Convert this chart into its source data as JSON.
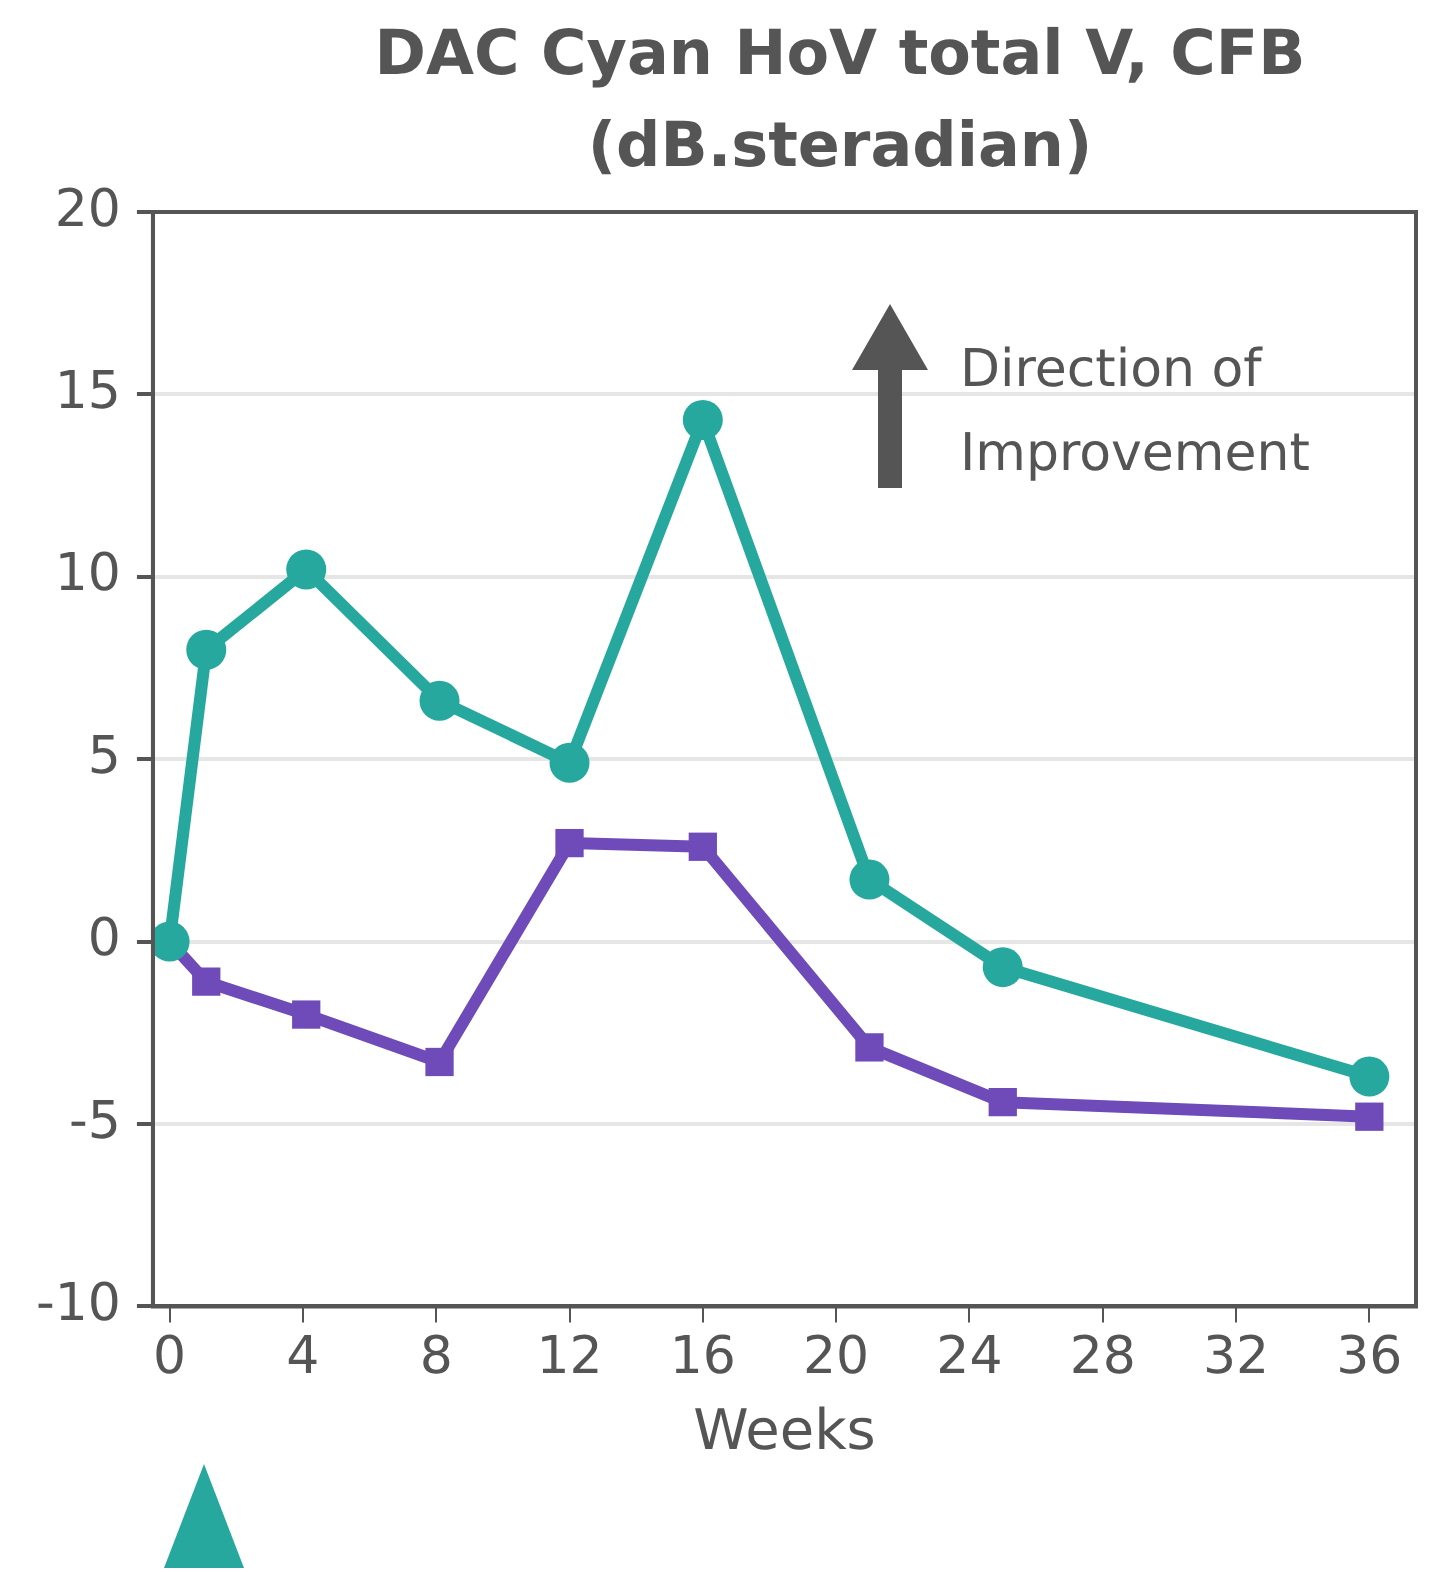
{
  "chart_data": {
    "type": "line",
    "title": "DAC Cyan HoV total V, CFB (dB.steradian)",
    "xlabel": "Weeks",
    "x": [
      0,
      1.1,
      4.1,
      8.1,
      12,
      16,
      21,
      25,
      36
    ],
    "series": [
      {
        "color": "#26a89e",
        "marker": "circle",
        "values": [
          0,
          8.0,
          10.2,
          6.6,
          4.9,
          14.3,
          1.7,
          -0.7,
          -3.7
        ]
      },
      {
        "color": "#6e4bb8",
        "marker": "square",
        "values": [
          0,
          -1.1,
          -2.0,
          -3.3,
          2.7,
          2.6,
          -2.9,
          -4.4,
          -4.8
        ]
      }
    ],
    "xlim": [
      -0.5,
      37.4
    ],
    "xticks": [
      0,
      4,
      8,
      12,
      16,
      20,
      24,
      28,
      32,
      36
    ],
    "ylim": [
      -10,
      20
    ],
    "yticks": [
      -10,
      -5,
      0,
      5,
      10,
      15,
      20
    ],
    "grid": "y",
    "legend": false,
    "line_style": "solid",
    "annotations": [
      "Direction of Improvement"
    ]
  }
}
